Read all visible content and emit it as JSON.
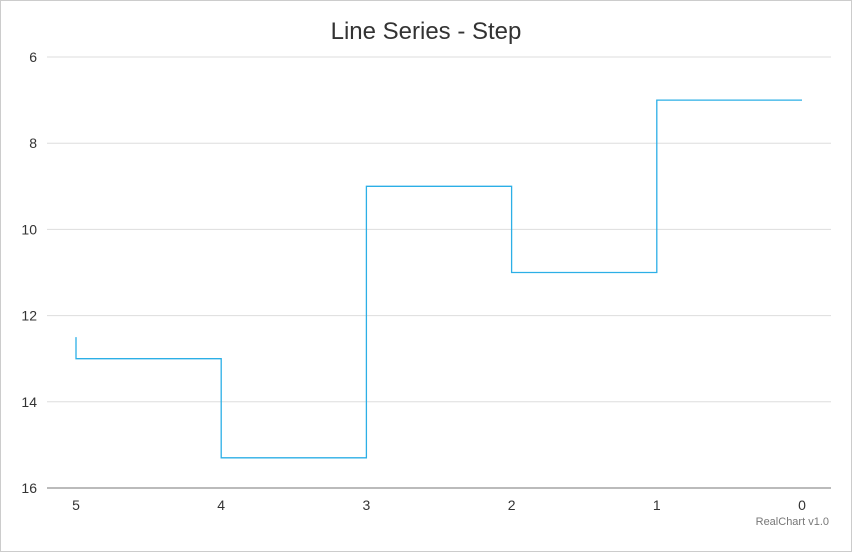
{
  "chart_data": {
    "type": "line",
    "title": "Line Series - Step",
    "step": true,
    "x_reversed": true,
    "y_reversed": true,
    "xlim": [
      5,
      0
    ],
    "ylim": [
      6,
      16
    ],
    "x_ticks": [
      5,
      4,
      3,
      2,
      1,
      0
    ],
    "y_ticks": [
      6,
      8,
      10,
      12,
      14,
      16
    ],
    "grid": true,
    "color": "#2cafe6",
    "series": [
      {
        "x": [
          5,
          4,
          3,
          2,
          1,
          0
        ],
        "values": [
          12.5,
          13,
          15.3,
          9,
          11,
          7
        ]
      }
    ]
  },
  "credit": "RealChart v1.0"
}
